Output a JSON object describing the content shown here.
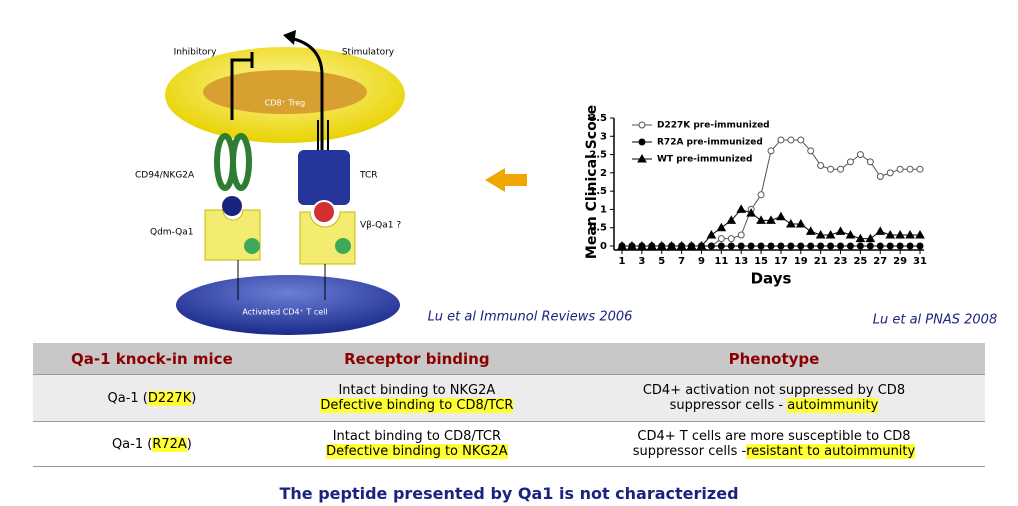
{
  "diagram": {
    "inhibitory": "Inhibitory",
    "stimulatory": "Stimulatory",
    "treg": "CD8⁺ Treg",
    "nkg2a": "CD94/NKG2A",
    "tcr": "TCR",
    "qdm": "Qdm-Qa1",
    "vb": "Vβ-Qa1 ?",
    "cd4": "Activated CD4⁺ T cell"
  },
  "captions": [
    "Lu et al Immunol Reviews 2006",
    "Lu et al PNAS 2008"
  ],
  "chart_data": {
    "type": "line",
    "ylabel": "Mean Clinical Score",
    "xlabel": "Days",
    "x": [
      1,
      2,
      3,
      4,
      5,
      6,
      7,
      8,
      9,
      10,
      11,
      12,
      13,
      14,
      15,
      16,
      17,
      18,
      19,
      20,
      21,
      22,
      23,
      24,
      25,
      26,
      27,
      28,
      29,
      30,
      31
    ],
    "xlim": [
      1,
      31
    ],
    "xticks": [
      1,
      3,
      5,
      7,
      9,
      11,
      13,
      15,
      17,
      19,
      21,
      23,
      25,
      27,
      29,
      31
    ],
    "ylim": [
      0,
      3.5
    ],
    "yticks": [
      0,
      0.5,
      1,
      1.5,
      2,
      2.5,
      3,
      3.5
    ],
    "series": [
      {
        "name": "D227K pre-immunized",
        "color": "#555555",
        "marker": "open-circle",
        "values": [
          0,
          0,
          0,
          0,
          0,
          0,
          0,
          0,
          0,
          0,
          0.2,
          0.2,
          0.3,
          1.0,
          1.4,
          2.6,
          2.9,
          2.9,
          2.9,
          2.6,
          2.2,
          2.1,
          2.1,
          2.3,
          2.5,
          2.3,
          1.9,
          2.0,
          2.1,
          2.1,
          2.1
        ]
      },
      {
        "name": "R72A pre-immunized",
        "color": "#000000",
        "marker": "circle",
        "values": [
          0,
          0,
          0,
          0,
          0,
          0,
          0,
          0,
          0,
          0,
          0,
          0,
          0,
          0,
          0,
          0,
          0,
          0,
          0,
          0,
          0,
          0,
          0,
          0,
          0,
          0,
          0,
          0,
          0,
          0,
          0
        ]
      },
      {
        "name": "WT pre-immunized",
        "color": "#000000",
        "marker": "triangle",
        "values": [
          0,
          0,
          0,
          0,
          0,
          0,
          0,
          0,
          0,
          0.3,
          0.5,
          0.7,
          1.0,
          0.9,
          0.7,
          0.7,
          0.8,
          0.6,
          0.6,
          0.4,
          0.3,
          0.3,
          0.4,
          0.3,
          0.2,
          0.2,
          0.4,
          0.3,
          0.3,
          0.3,
          0.3
        ]
      }
    ]
  },
  "table": {
    "header": [
      "Qa-1 knock-in mice",
      "Receptor binding",
      "Phenotype"
    ],
    "rows": [
      [
        [
          [
            {
              "text": "Qa-1 ("
            },
            {
              "text": "D227K",
              "highlight": true
            },
            {
              "text": ")"
            }
          ]
        ],
        [
          [
            {
              "text": "Intact binding to NKG2A"
            }
          ],
          [
            {
              "text": "Defective binding to CD8/TCR",
              "highlight": true
            }
          ]
        ],
        [
          [
            {
              "text": "CD4+ activation not suppressed by CD8"
            }
          ],
          [
            {
              "text": "suppressor cells - "
            },
            {
              "text": "autoimmunity",
              "highlight": true
            }
          ]
        ]
      ],
      [
        [
          [
            {
              "text": "Qa-1 ("
            },
            {
              "text": "R72A",
              "highlight": true
            },
            {
              "text": ")"
            }
          ]
        ],
        [
          [
            {
              "text": "Intact binding to CD8/TCR"
            }
          ],
          [
            {
              "text": "Defective binding to NKG2A",
              "highlight": true
            }
          ]
        ],
        [
          [
            {
              "text": "CD4+ T cells are more susceptible to CD8"
            }
          ],
          [
            {
              "text": "suppressor cells -"
            },
            {
              "text": "resistant to autoimmunity",
              "highlight": true
            }
          ]
        ]
      ]
    ]
  },
  "footer": "The peptide presented by Qa1 is not characterized"
}
